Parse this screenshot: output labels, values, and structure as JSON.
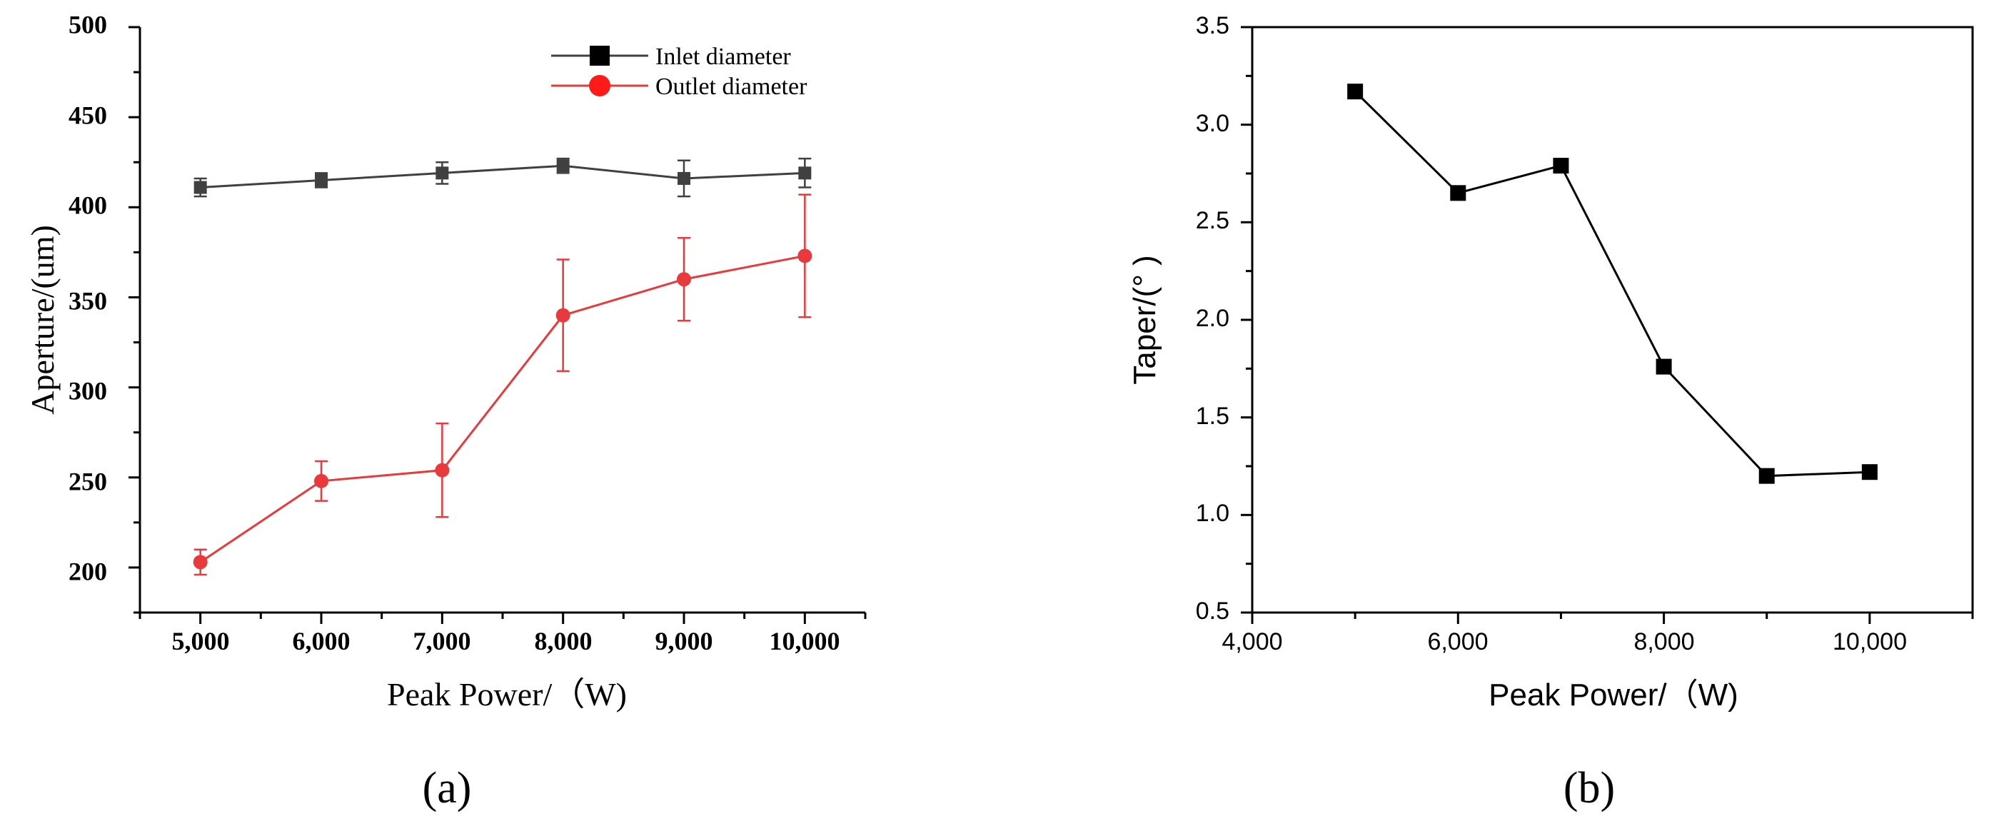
{
  "chart_data": [
    {
      "type": "line",
      "panel_label": "(a)",
      "xlabel": "Peak Power/（W)",
      "ylabel": "Aperture/(um)",
      "x": [
        5000,
        6000,
        7000,
        8000,
        9000,
        10000
      ],
      "x_tick_labels": [
        "5,000",
        "6,000",
        "7,000",
        "8,000",
        "9,000",
        "10,000"
      ],
      "xlim": [
        4500,
        10500
      ],
      "ylim": [
        175,
        500
      ],
      "y_ticks": [
        200,
        250,
        300,
        350,
        400,
        450,
        500
      ],
      "y_tick_labels": [
        "200",
        "250",
        "300",
        "350",
        "400",
        "450",
        "500"
      ],
      "legend_position": "top-right",
      "series": [
        {
          "name": "Inlet diameter",
          "color": "#404040",
          "marker": "square",
          "values": [
            411,
            415,
            419,
            423,
            416,
            419
          ],
          "errors": [
            5,
            4,
            6,
            4,
            10,
            8
          ]
        },
        {
          "name": "Outlet diameter",
          "color": "#e8393c",
          "marker": "circle",
          "values": [
            203,
            248,
            254,
            340,
            360,
            373
          ],
          "errors": [
            7,
            11,
            26,
            31,
            23,
            34
          ]
        }
      ]
    },
    {
      "type": "line",
      "panel_label": "(b)",
      "xlabel": "Peak Power/（W)",
      "ylabel": "Taper/(°  )",
      "x": [
        5000,
        6000,
        7000,
        8000,
        9000,
        10000
      ],
      "x_ticks": [
        4000,
        6000,
        8000,
        10000
      ],
      "x_tick_labels": [
        "4,000",
        "6,000",
        "8,000",
        "10,000"
      ],
      "xlim": [
        4000,
        11000
      ],
      "ylim": [
        0.5,
        3.5
      ],
      "y_ticks": [
        0.5,
        1.0,
        1.5,
        2.0,
        2.5,
        3.0,
        3.5
      ],
      "y_tick_labels": [
        "0.5",
        "1.0",
        "1.5",
        "2.0",
        "2.5",
        "3.0",
        "3.5"
      ],
      "series": [
        {
          "name": "Taper",
          "color": "#000000",
          "marker": "square",
          "values": [
            3.17,
            2.65,
            2.79,
            1.76,
            1.2,
            1.22
          ]
        }
      ]
    }
  ]
}
